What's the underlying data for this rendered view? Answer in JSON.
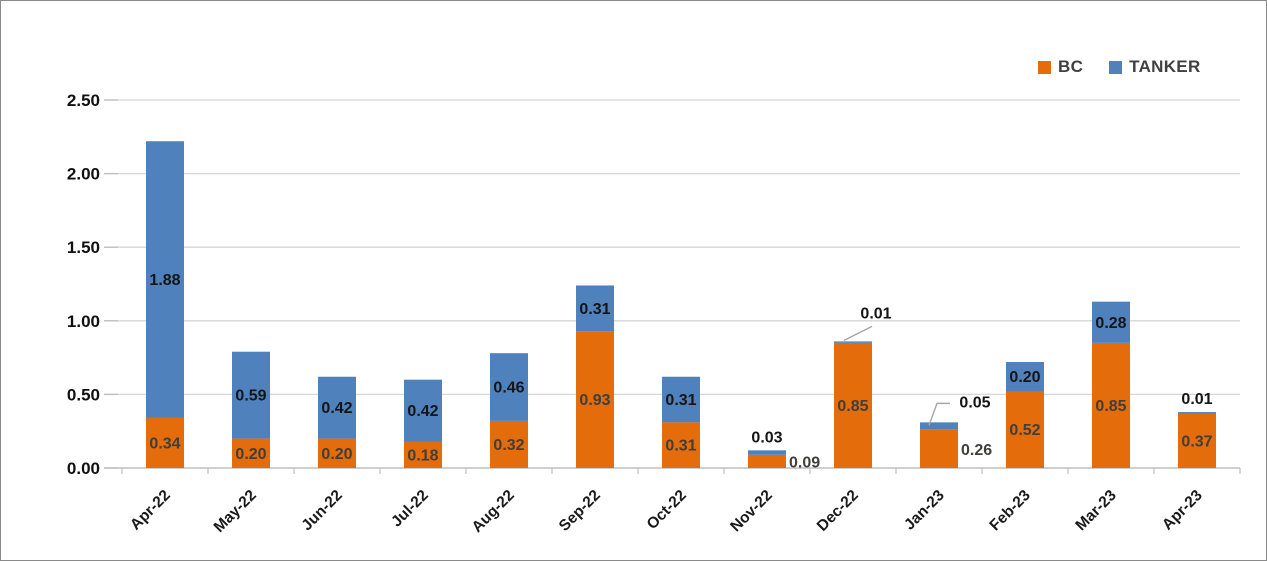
{
  "chart_data": {
    "type": "bar",
    "stacked": true,
    "title": "",
    "xlabel": "",
    "ylabel": "",
    "categories": [
      "Apr-22",
      "May-22",
      "Jun-22",
      "Jul-22",
      "Aug-22",
      "Sep-22",
      "Oct-22",
      "Nov-22",
      "Dec-22",
      "Jan-23",
      "Feb-23",
      "Mar-23",
      "Apr-23"
    ],
    "series": [
      {
        "name": "BC",
        "color": "#E46C0A",
        "label_color": "#3F3F3C",
        "values": [
          0.34,
          0.2,
          0.2,
          0.18,
          0.32,
          0.93,
          0.31,
          0.09,
          0.85,
          0.26,
          0.52,
          0.85,
          0.37
        ],
        "label_positions": [
          "center",
          "center",
          "center",
          "center",
          "center",
          "center",
          "center",
          "right",
          "center",
          "right",
          "center",
          "center",
          "center"
        ]
      },
      {
        "name": "TANKER",
        "color": "#4F81BD",
        "label_color": "#151515",
        "values": [
          1.88,
          0.59,
          0.42,
          0.42,
          0.46,
          0.31,
          0.31,
          0.03,
          0.01,
          0.05,
          0.2,
          0.28,
          0.01
        ],
        "label_positions": [
          "center",
          "center",
          "center",
          "center",
          "center",
          "center",
          "center",
          "above",
          "leader-left",
          "leader-right",
          "center",
          "center",
          "above"
        ]
      }
    ],
    "ylim": [
      0,
      2.5
    ],
    "ytick_labels": [
      "0.00",
      "0.50",
      "1.00",
      "1.50",
      "2.00",
      "2.50"
    ],
    "grid": true,
    "legend_position": "top-right",
    "value_label_decimals": 2
  },
  "colors": {
    "grid": "#D6D6D6",
    "axis": "#BFBFBF",
    "y_label": "#111111",
    "x_label": "#1A1A1A",
    "legend_text": "#404040",
    "leader_line": "#A6A6A6",
    "frame_border": "#8A8A8A"
  }
}
